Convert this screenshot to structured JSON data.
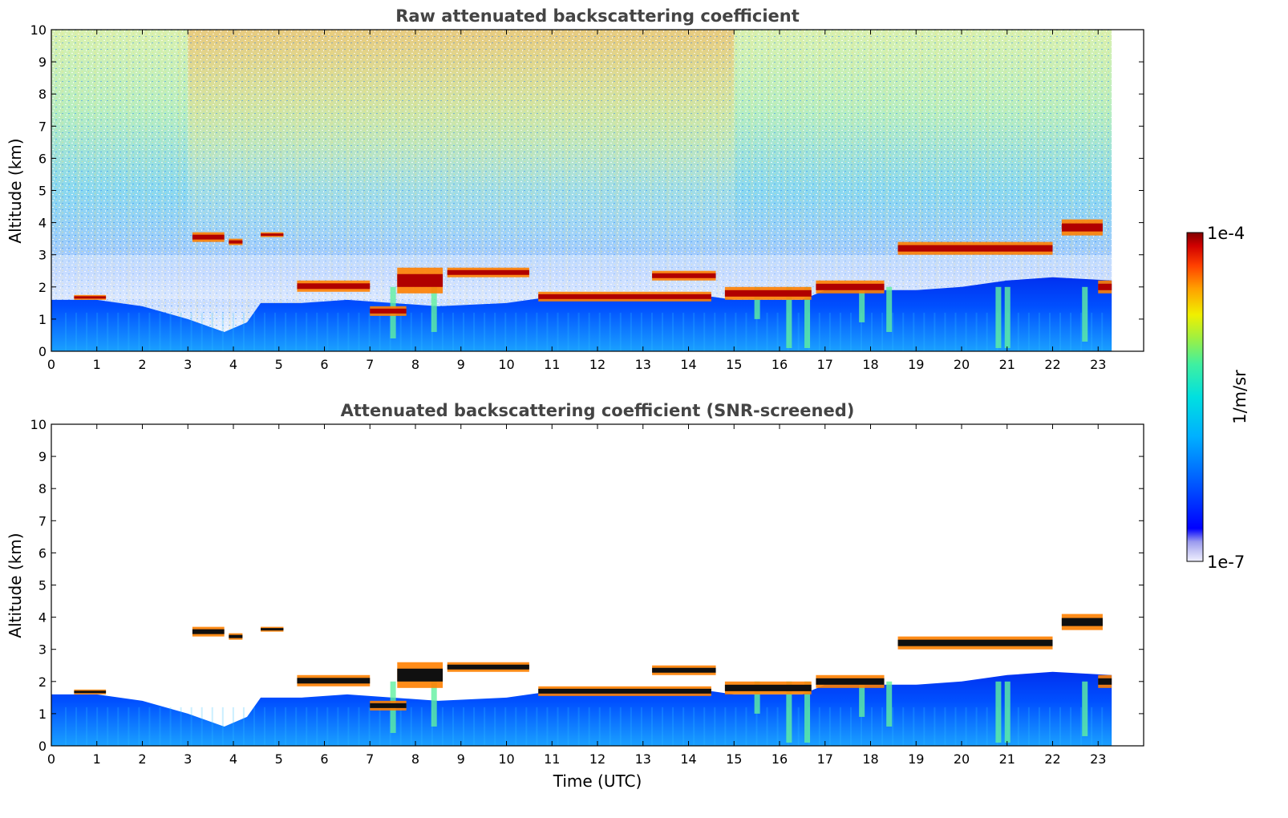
{
  "chart_data": [
    {
      "type": "heatmap",
      "title": "Raw attenuated backscattering coefficient",
      "xlabel": "",
      "ylabel": "Altitude (km)",
      "xlim": [
        0,
        24
      ],
      "ylim": [
        0,
        10
      ],
      "x_ticks": [
        "0",
        "1",
        "2",
        "3",
        "4",
        "5",
        "6",
        "7",
        "8",
        "9",
        "10",
        "11",
        "12",
        "13",
        "14",
        "15",
        "16",
        "17",
        "18",
        "19",
        "20",
        "21",
        "22",
        "23"
      ],
      "y_ticks": [
        "0",
        "1",
        "2",
        "3",
        "4",
        "5",
        "6",
        "7",
        "8",
        "9",
        "10"
      ],
      "data_end_time": 23.3,
      "screened": false,
      "cloud_layers": [
        {
          "start": 0.5,
          "end": 1.2,
          "base_km": 1.6,
          "top_km": 1.75
        },
        {
          "start": 3.1,
          "end": 3.8,
          "base_km": 3.4,
          "top_km": 3.7
        },
        {
          "start": 3.9,
          "end": 4.2,
          "base_km": 3.3,
          "top_km": 3.5
        },
        {
          "start": 4.6,
          "end": 5.1,
          "base_km": 3.55,
          "top_km": 3.7
        },
        {
          "start": 5.4,
          "end": 7.0,
          "base_km": 1.85,
          "top_km": 2.2
        },
        {
          "start": 7.0,
          "end": 7.8,
          "base_km": 1.1,
          "top_km": 1.4
        },
        {
          "start": 7.6,
          "end": 8.6,
          "base_km": 1.8,
          "top_km": 2.6
        },
        {
          "start": 8.7,
          "end": 10.5,
          "base_km": 2.3,
          "top_km": 2.6
        },
        {
          "start": 10.7,
          "end": 14.5,
          "base_km": 1.55,
          "top_km": 1.85
        },
        {
          "start": 13.2,
          "end": 14.6,
          "base_km": 2.2,
          "top_km": 2.5
        },
        {
          "start": 14.8,
          "end": 16.7,
          "base_km": 1.6,
          "top_km": 2.0
        },
        {
          "start": 16.8,
          "end": 18.3,
          "base_km": 1.8,
          "top_km": 2.2
        },
        {
          "start": 18.6,
          "end": 22.0,
          "base_km": 3.0,
          "top_km": 3.4
        },
        {
          "start": 22.2,
          "end": 23.1,
          "base_km": 3.6,
          "top_km": 4.1
        },
        {
          "start": 23.0,
          "end": 23.3,
          "base_km": 1.8,
          "top_km": 2.2
        }
      ]
    },
    {
      "type": "heatmap",
      "title": "Attenuated backscattering coefficient (SNR-screened)",
      "xlabel": "Time (UTC)",
      "ylabel": "Altitude (km)",
      "xlim": [
        0,
        24
      ],
      "ylim": [
        0,
        10
      ],
      "x_ticks": [
        "0",
        "1",
        "2",
        "3",
        "4",
        "5",
        "6",
        "7",
        "8",
        "9",
        "10",
        "11",
        "12",
        "13",
        "14",
        "15",
        "16",
        "17",
        "18",
        "19",
        "20",
        "21",
        "22",
        "23"
      ],
      "y_ticks": [
        "0",
        "1",
        "2",
        "3",
        "4",
        "5",
        "6",
        "7",
        "8",
        "9",
        "10"
      ],
      "data_end_time": 23.3,
      "screened": true,
      "cloud_layers": [
        {
          "start": 0.5,
          "end": 1.2,
          "base_km": 1.6,
          "top_km": 1.75
        },
        {
          "start": 3.1,
          "end": 3.8,
          "base_km": 3.4,
          "top_km": 3.7
        },
        {
          "start": 3.9,
          "end": 4.2,
          "base_km": 3.3,
          "top_km": 3.5
        },
        {
          "start": 4.6,
          "end": 5.1,
          "base_km": 3.55,
          "top_km": 3.7
        },
        {
          "start": 5.4,
          "end": 7.0,
          "base_km": 1.85,
          "top_km": 2.2
        },
        {
          "start": 7.0,
          "end": 7.8,
          "base_km": 1.1,
          "top_km": 1.4
        },
        {
          "start": 7.6,
          "end": 8.6,
          "base_km": 1.8,
          "top_km": 2.6
        },
        {
          "start": 8.7,
          "end": 10.5,
          "base_km": 2.3,
          "top_km": 2.6
        },
        {
          "start": 10.7,
          "end": 14.5,
          "base_km": 1.55,
          "top_km": 1.85
        },
        {
          "start": 13.2,
          "end": 14.6,
          "base_km": 2.2,
          "top_km": 2.5
        },
        {
          "start": 14.8,
          "end": 16.7,
          "base_km": 1.6,
          "top_km": 2.0
        },
        {
          "start": 16.8,
          "end": 18.3,
          "base_km": 1.8,
          "top_km": 2.2
        },
        {
          "start": 18.6,
          "end": 22.0,
          "base_km": 3.0,
          "top_km": 3.4
        },
        {
          "start": 22.2,
          "end": 23.1,
          "base_km": 3.6,
          "top_km": 4.1
        },
        {
          "start": 23.0,
          "end": 23.3,
          "base_km": 1.8,
          "top_km": 2.2
        }
      ]
    }
  ],
  "colorbar": {
    "label": "1/m/sr",
    "max_label": "1e-4",
    "min_label": "1e-7",
    "scale": "log",
    "colormap": "jet",
    "colors": [
      "#f0f0ff",
      "#c8c8f5",
      "#9a9aee",
      "#0000ff",
      "#0060ff",
      "#00b0ff",
      "#00e0e0",
      "#40f0a0",
      "#a0f040",
      "#f0f000",
      "#ffa000",
      "#ff4000",
      "#d00000",
      "#800000"
    ]
  }
}
